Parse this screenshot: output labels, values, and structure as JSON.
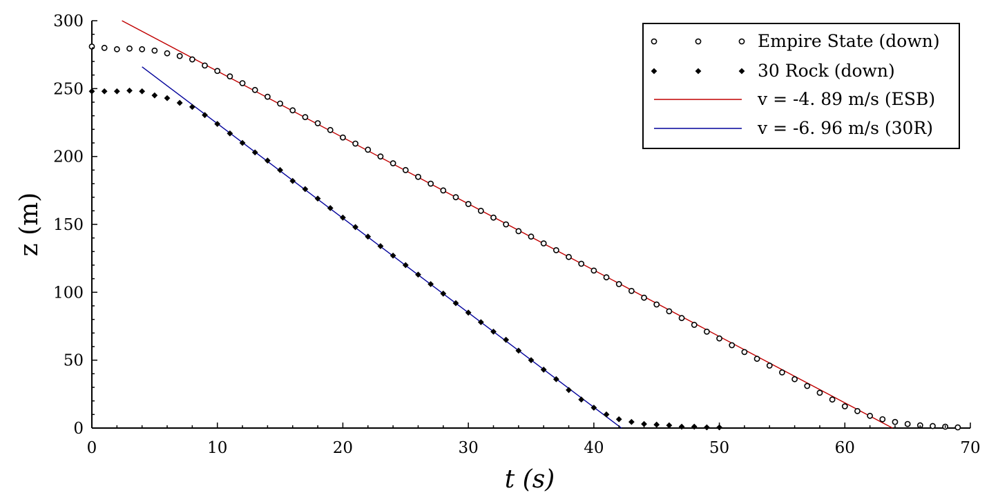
{
  "chart_data": {
    "type": "scatter",
    "xlabel": "t (s)",
    "ylabel": "z (m)",
    "xlim": [
      0,
      70
    ],
    "ylim": [
      0,
      300
    ],
    "xticks": [
      0,
      10,
      20,
      30,
      40,
      50,
      60,
      70
    ],
    "yticks": [
      0,
      50,
      100,
      150,
      200,
      250,
      300
    ],
    "grid": false,
    "legend_position": "top-right",
    "series": [
      {
        "name": "Empire State (down)",
        "kind": "scatter",
        "marker": "open-circle",
        "color": "#000000",
        "x": [
          0,
          1,
          2,
          3,
          4,
          5,
          6,
          7,
          8,
          9,
          10,
          11,
          12,
          13,
          14,
          15,
          16,
          17,
          18,
          19,
          20,
          21,
          22,
          23,
          24,
          25,
          26,
          27,
          28,
          29,
          30,
          31,
          32,
          33,
          34,
          35,
          36,
          37,
          38,
          39,
          40,
          41,
          42,
          43,
          44,
          45,
          46,
          47,
          48,
          49,
          50,
          51,
          52,
          53,
          54,
          55,
          56,
          57,
          58,
          59,
          60,
          61,
          62,
          63,
          64,
          65,
          66,
          67,
          68,
          69
        ],
        "y": [
          281,
          280,
          279,
          279.5,
          279,
          278,
          276,
          274,
          271.5,
          267,
          263,
          259,
          254,
          249,
          244,
          239,
          234,
          229,
          224.5,
          219.5,
          214,
          209.5,
          205,
          200,
          195,
          190,
          185,
          180,
          175,
          170,
          165,
          160,
          155,
          150,
          145,
          141,
          136,
          131,
          126,
          121,
          116,
          111,
          106,
          101,
          96,
          91,
          86,
          81,
          76,
          71,
          66,
          61,
          56,
          51,
          46,
          41,
          36,
          31,
          26,
          21,
          16,
          12.5,
          9,
          6.5,
          4.5,
          3,
          2,
          1.5,
          1,
          0.5
        ]
      },
      {
        "name": "30 Rock (down)",
        "kind": "scatter",
        "marker": "filled-diamond",
        "color": "#000000",
        "x": [
          0,
          1,
          2,
          3,
          4,
          5,
          6,
          7,
          8,
          9,
          10,
          11,
          12,
          13,
          14,
          15,
          16,
          17,
          18,
          19,
          20,
          21,
          22,
          23,
          24,
          25,
          26,
          27,
          28,
          29,
          30,
          31,
          32,
          33,
          34,
          35,
          36,
          37,
          38,
          39,
          40,
          41,
          42,
          43,
          44,
          45,
          46,
          47,
          48,
          49,
          50
        ],
        "y": [
          248,
          248,
          248,
          248.5,
          248,
          245,
          243,
          239.5,
          236.5,
          230.5,
          224,
          217,
          210,
          203,
          197,
          190,
          182,
          176,
          169,
          162,
          155,
          148,
          141,
          134,
          127,
          120,
          113,
          106,
          99,
          92,
          85,
          78,
          71,
          65,
          57,
          50,
          43,
          36,
          28,
          21,
          15,
          10,
          6.5,
          4.5,
          3,
          2.5,
          2,
          1,
          1,
          0.5,
          0.5
        ]
      },
      {
        "name": "v = -4. 89 m/s (ESB)",
        "kind": "line",
        "color": "#c00000",
        "x": [
          2.4,
          63.8
        ],
        "y": [
          300,
          0
        ]
      },
      {
        "name": "v = -6. 96 m/s (30R)",
        "kind": "line",
        "color": "#00009a",
        "x": [
          4,
          42.2
        ],
        "y": [
          266,
          0
        ]
      }
    ]
  }
}
